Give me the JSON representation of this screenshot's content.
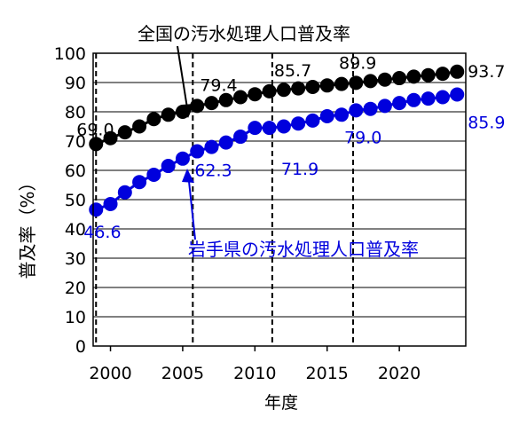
{
  "chart_data": {
    "type": "line",
    "ylabel": "普及率（%）",
    "xlabel": "年度",
    "ylim": [
      0,
      100
    ],
    "xlim": [
      1998.8,
      2024.6
    ],
    "yticks": [
      0,
      10,
      20,
      30,
      40,
      50,
      60,
      70,
      80,
      90,
      100
    ],
    "xticks": [
      2000,
      2005,
      2010,
      2015,
      2020
    ],
    "grid": "horizontal",
    "x": [
      1999,
      2000,
      2001,
      2002,
      2003,
      2004,
      2005,
      2006,
      2007,
      2008,
      2009,
      2010,
      2011,
      2012,
      2013,
      2014,
      2015,
      2016,
      2017,
      2018,
      2019,
      2020,
      2021,
      2022,
      2023,
      2024
    ],
    "series": [
      {
        "name": "全国の汚水処理人口普及率",
        "color": "#000000",
        "values": [
          69.0,
          71.0,
          73.0,
          75.0,
          77.5,
          79.0,
          80.0,
          82.0,
          83.0,
          84.0,
          85.0,
          86.0,
          87.0,
          87.5,
          88.0,
          88.5,
          89.0,
          89.5,
          89.9,
          90.5,
          91.0,
          91.5,
          92.0,
          92.5,
          93.0,
          93.7
        ]
      },
      {
        "name": "岩手県の汚水処理人口普及率",
        "color": "#0000dd",
        "values": [
          46.6,
          48.5,
          52.5,
          56.0,
          58.5,
          61.5,
          64.0,
          66.5,
          68.0,
          69.5,
          71.5,
          74.5,
          74.5,
          75.0,
          76.0,
          77.0,
          78.5,
          79.0,
          80.5,
          81.0,
          82.0,
          83.0,
          84.0,
          84.5,
          85.0,
          85.9
        ]
      }
    ],
    "vlines": [
      1999,
      2005.7,
      2011.2,
      2016.8
    ],
    "data_labels": [
      {
        "series": 0,
        "text": "69.0",
        "x": 1999
      },
      {
        "series": 0,
        "text": "79.4",
        "x": 2005.7
      },
      {
        "series": 0,
        "text": "85.7",
        "x": 2011.2
      },
      {
        "series": 0,
        "text": "89.9",
        "x": 2016.8
      },
      {
        "series": 0,
        "text": "93.7",
        "x": 2024
      },
      {
        "series": 1,
        "text": "46.6",
        "x": 1999
      },
      {
        "series": 1,
        "text": "62.3",
        "x": 2005.7
      },
      {
        "series": 1,
        "text": "71.9",
        "x": 2011.2
      },
      {
        "series": 1,
        "text": "79.0",
        "x": 2016.8
      },
      {
        "series": 1,
        "text": "85.9",
        "x": 2024
      }
    ]
  }
}
